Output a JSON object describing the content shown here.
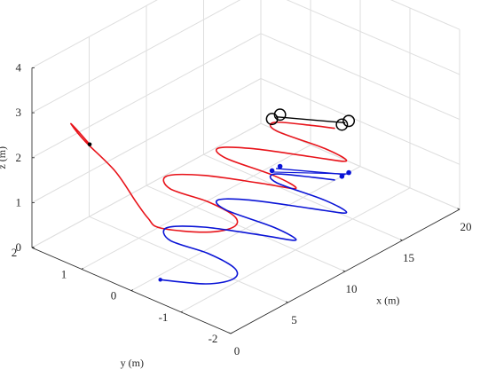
{
  "chart_data": {
    "type": "line",
    "projection": "3d",
    "title": "",
    "xlabel": "x (m)",
    "ylabel": "y (m)",
    "zlabel": "z (m)",
    "xlim": [
      0,
      20
    ],
    "ylim": [
      -2,
      2
    ],
    "zlim": [
      0,
      4
    ],
    "xticks": [
      "0",
      "5",
      "10",
      "15",
      "20"
    ],
    "yticks": [
      "-2",
      "-1",
      "0",
      "1",
      "2"
    ],
    "zticks": [
      "0",
      "1",
      "2",
      "3",
      "4"
    ],
    "grid": true,
    "legend": "none",
    "series": [
      {
        "style": "red-trajectory",
        "color": "#e8131a",
        "start": {
          "x": -0.6,
          "y": 0.7,
          "z": 3.0
        },
        "x": [
          -0.6,
          -0.7,
          -0.5,
          0.3,
          1.2,
          1.7,
          1.9,
          2.1,
          3.5,
          5.0,
          6.0,
          6.3,
          6.0,
          7.0,
          8.5,
          10.0,
          10.9,
          11.2,
          10.9,
          11.5,
          12.8,
          14.3,
          15.3,
          15.6,
          15.3,
          16.0,
          17.2,
          17.8
        ],
        "y": [
          0.7,
          0.9,
          1.1,
          1.0,
          0.6,
          0.3,
          0.1,
          -0.1,
          -0.7,
          -0.9,
          -0.7,
          -0.1,
          0.6,
          0.9,
          0.5,
          -0.3,
          -0.8,
          -0.3,
          0.6,
          0.9,
          0.5,
          -0.3,
          -0.8,
          -0.3,
          0.6,
          0.8,
          0.3,
          0.0
        ],
        "z": [
          3.0,
          3.2,
          3.25,
          2.8,
          2.2,
          1.6,
          1.3,
          1.15,
          1.15,
          1.15,
          1.15,
          1.15,
          1.15,
          1.15,
          1.15,
          1.15,
          1.15,
          1.15,
          1.15,
          1.15,
          1.15,
          1.15,
          1.15,
          1.15,
          1.15,
          1.15,
          1.15,
          1.15
        ]
      },
      {
        "style": "blue-ground-trajectory",
        "color": "#0a14d6",
        "x": [
          2.1,
          3.5,
          5.0,
          6.0,
          6.3,
          6.0,
          7.0,
          8.5,
          10.0,
          10.9,
          11.2,
          10.9,
          11.5,
          12.8,
          14.3,
          15.3,
          15.6,
          15.3,
          16.0,
          17.2,
          17.8
        ],
        "y": [
          -0.1,
          -0.7,
          -0.9,
          -0.7,
          -0.1,
          0.6,
          0.9,
          0.5,
          -0.3,
          -0.8,
          -0.3,
          0.6,
          0.9,
          0.5,
          -0.3,
          -0.8,
          -0.3,
          0.6,
          0.8,
          0.3,
          0.0
        ],
        "z": [
          0,
          0,
          0,
          0,
          0,
          0,
          0,
          0,
          0,
          0,
          0,
          0,
          0,
          0,
          0,
          0,
          0,
          0,
          0,
          0,
          0
        ]
      }
    ],
    "markers": [
      {
        "shape": "vehicle-rotors",
        "color": "#000000",
        "rotors": [
          {
            "x": 16.2,
            "y": 0.9,
            "z": 1.15
          },
          {
            "x": 16.9,
            "y": 0.9,
            "z": 1.15
          },
          {
            "x": 18.4,
            "y": 0.0,
            "z": 1.15
          },
          {
            "x": 19.0,
            "y": 0.0,
            "z": 1.15
          }
        ]
      },
      {
        "shape": "vehicle-shadow",
        "color": "#0a14d6",
        "rotors": [
          {
            "x": 16.2,
            "y": 0.9,
            "z": 0
          },
          {
            "x": 16.9,
            "y": 0.9,
            "z": 0
          },
          {
            "x": 18.4,
            "y": 0.0,
            "z": 0
          },
          {
            "x": 19.0,
            "y": 0.0,
            "z": 0
          }
        ]
      },
      {
        "shape": "start-point",
        "color": "#0a14d6",
        "x": 2.1,
        "y": -0.1,
        "z": 0
      }
    ]
  }
}
